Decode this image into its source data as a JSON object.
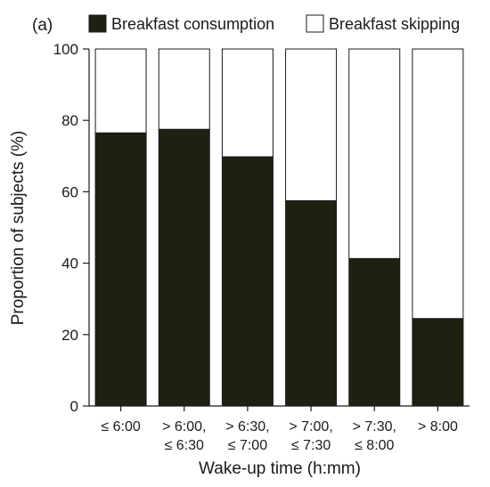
{
  "chart_data": {
    "type": "bar",
    "stacked": true,
    "panel_label": "(a)",
    "xlabel": "Wake-up time (h:mm)",
    "ylabel": "Proportion of subjects (%)",
    "ylim": [
      0,
      100
    ],
    "yticks": [
      0,
      20,
      40,
      60,
      80,
      100
    ],
    "categories": [
      [
        "≤ 6:00"
      ],
      [
        "> 6:00,",
        "≤ 6:30"
      ],
      [
        "> 6:30,",
        "≤ 7:00"
      ],
      [
        "> 7:00,",
        "≤ 7:30"
      ],
      [
        "> 7:30,",
        "≤ 8:00"
      ],
      [
        "> 8:00"
      ]
    ],
    "series": [
      {
        "name": "Breakfast consumption",
        "color": "#1f1f12",
        "values": [
          76.5,
          77.5,
          69.8,
          57.5,
          41.3,
          24.5
        ]
      },
      {
        "name": "Breakfast skipping",
        "color": "#ffffff",
        "values": [
          23.5,
          22.5,
          30.2,
          42.5,
          58.7,
          75.5
        ]
      }
    ],
    "legend_position": "top",
    "grid": false
  }
}
